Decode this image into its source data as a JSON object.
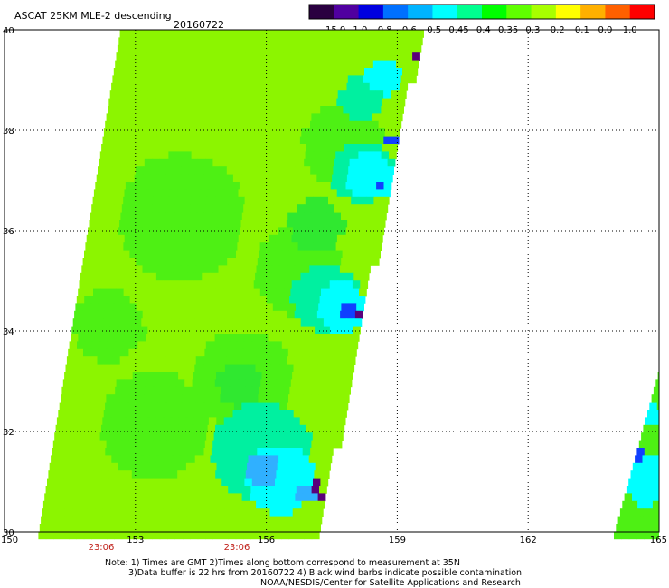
{
  "header": {
    "title": "ASCAT 25KM MLE-2 descending",
    "date": "20160722"
  },
  "colorbar": {
    "labels": [
      "-15.0",
      "-1.0",
      "-0.8",
      "-0.6",
      "-0.5",
      "-0.45",
      "-0.4",
      "-0.35",
      "-0.3",
      "-0.2",
      "-0.1",
      "0.0",
      "1.0"
    ],
    "colors": [
      "#2a0040",
      "#5000a0",
      "#0000e0",
      "#0070ff",
      "#00b4ff",
      "#00ffff",
      "#00ff90",
      "#00ff00",
      "#60ff00",
      "#a8ff00",
      "#ffff00",
      "#ffb000",
      "#ff6000",
      "#ff0000"
    ]
  },
  "axes": {
    "lon_ticks": [
      "150",
      "153",
      "156",
      "159",
      "162",
      "165"
    ],
    "lat_ticks": [
      "40",
      "38",
      "36",
      "34",
      "32",
      "30"
    ]
  },
  "times": [
    "23:06",
    "23:06"
  ],
  "notes": {
    "line1": "Note: 1) Times are GMT 2)Times along bottom correspond to measurement at 35N",
    "line2": "3)Data buffer is 22 hrs from 20160722 4) Black wind barbs indicate possible contamination",
    "line3": "NOAA/NESDIS/Center for Satellite Applications and Research"
  },
  "map_data": {
    "lon_range": [
      150,
      165
    ],
    "lat_range": [
      30,
      40
    ],
    "field_colors": {
      "base": "#8cf500",
      "green": "#4ef014",
      "green_dark": "#30e830",
      "aqua": "#00f0a0",
      "cyan": "#00ffff",
      "blue_light": "#30b0ff",
      "blue": "#1040ff",
      "blue_dark": "#1010d0",
      "purple": "#5a007a"
    }
  }
}
